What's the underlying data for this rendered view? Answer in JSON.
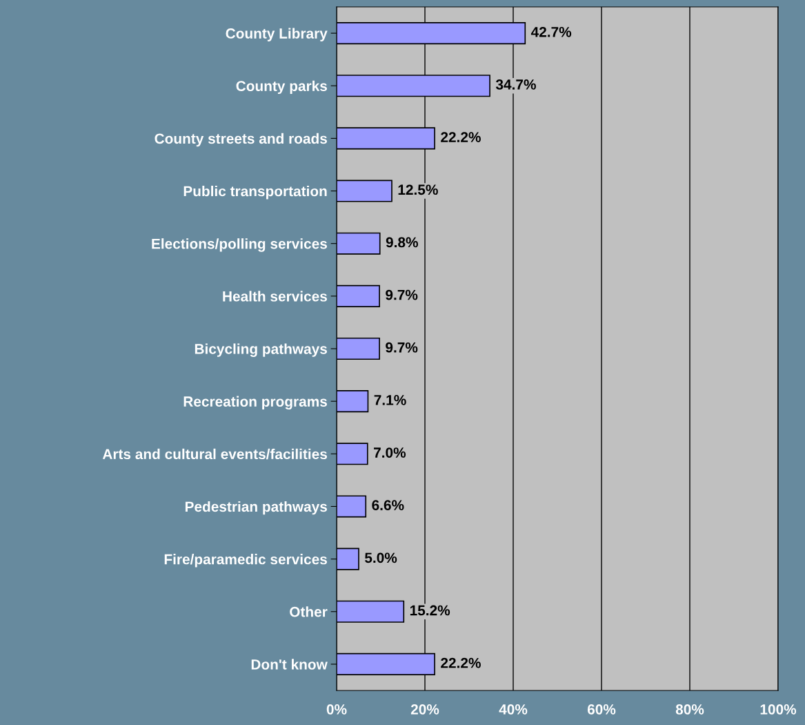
{
  "chart_data": {
    "type": "bar",
    "orientation": "horizontal",
    "categories": [
      "County Library",
      "County parks",
      "County streets and roads",
      "Public transportation",
      "Elections/polling services",
      "Health services",
      "Bicycling pathways",
      "Recreation programs",
      "Arts and cultural events/facilities",
      "Pedestrian pathways",
      "Fire/paramedic services",
      "Other",
      "Don't know"
    ],
    "values": [
      42.7,
      34.7,
      22.2,
      12.5,
      9.8,
      9.7,
      9.7,
      7.1,
      7.0,
      6.6,
      5.0,
      15.2,
      22.2
    ],
    "value_labels": [
      "42.7%",
      "34.7%",
      "22.2%",
      "12.5%",
      "9.8%",
      "9.7%",
      "9.7%",
      "7.1%",
      "7.0%",
      "6.6%",
      "5.0%",
      "15.2%",
      "22.2%"
    ],
    "color": "#9999ff",
    "xlim": [
      0,
      100
    ],
    "xticks": [
      {
        "value": 0,
        "label": "0%"
      },
      {
        "value": 20,
        "label": "20%"
      },
      {
        "value": 40,
        "label": "40%"
      },
      {
        "value": 60,
        "label": "60%"
      },
      {
        "value": 80,
        "label": "80%"
      },
      {
        "value": 100,
        "label": "100%"
      }
    ],
    "grid": "x",
    "legend": false
  }
}
